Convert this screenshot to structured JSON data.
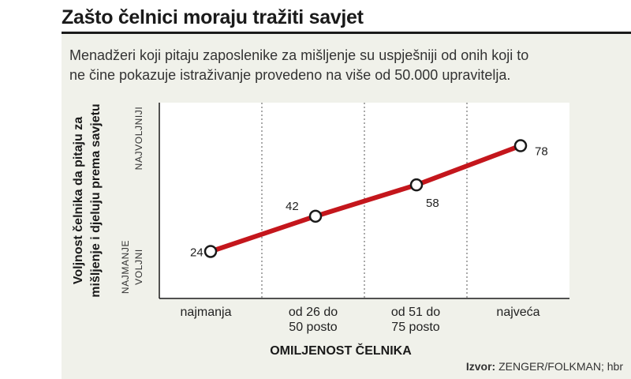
{
  "header": {
    "title": "Zašto čelnici moraju tražiti savjet",
    "subtitle_lines": [
      "Menadžeri koji pitaju zaposlenike za mišljenje su uspješniji od onih koji to",
      "ne čine pokazuje istraživanje provedeno na više od 50.000 upravitelja."
    ]
  },
  "source": {
    "label": "Izvor:",
    "text": "ZENGER/FOLKMAN; hbr"
  },
  "colors": {
    "line": "#c4161c",
    "panel": "#f0f1ea",
    "text": "#333333"
  },
  "chart_data": {
    "type": "line",
    "categories": [
      [
        "najmanja"
      ],
      [
        "od 26 do",
        "50 posto"
      ],
      [
        "od 51 do",
        "75 posto"
      ],
      [
        "najveća"
      ]
    ],
    "values": [
      24,
      42,
      58,
      78
    ],
    "xlabel": "OMILJENOST ČELNIKA",
    "ylabel_lines": [
      "Voljnost čelnika da pitaju za",
      "mišljenje i djeluju prema savjetu"
    ],
    "y_top_label": "NAJVOLJNIJI",
    "y_bottom_label_lines": [
      "NAJMANJE",
      "VOLJNI"
    ],
    "ylim": [
      0,
      100
    ],
    "grid": "vertical dotted"
  }
}
